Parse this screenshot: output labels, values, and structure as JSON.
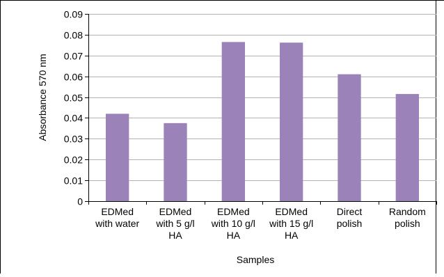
{
  "chart_data": {
    "type": "bar",
    "xlabel": "Samples",
    "ylabel": "Absorbance 570 nm",
    "ylim": [
      0,
      0.09
    ],
    "yticks": [
      "0",
      "0.01",
      "0.02",
      "0.03",
      "0.04",
      "0.05",
      "0.06",
      "0.07",
      "0.08",
      "0.09"
    ],
    "grid": true,
    "categories": [
      [
        "EDMed",
        "with water"
      ],
      [
        "EDMed",
        "with 5 g/l",
        "HA"
      ],
      [
        "EDMed",
        "with 10 g/l",
        "HA"
      ],
      [
        "EDMed",
        "with 15 g/l",
        "HA"
      ],
      [
        "Direct",
        "polish"
      ],
      [
        "Random",
        "polish"
      ]
    ],
    "values": [
      0.042,
      0.0375,
      0.0765,
      0.0762,
      0.061,
      0.0515
    ]
  },
  "colors": {
    "bar": "#9b82b8",
    "gridline": "#b3b3b3",
    "axis": "#000000"
  }
}
